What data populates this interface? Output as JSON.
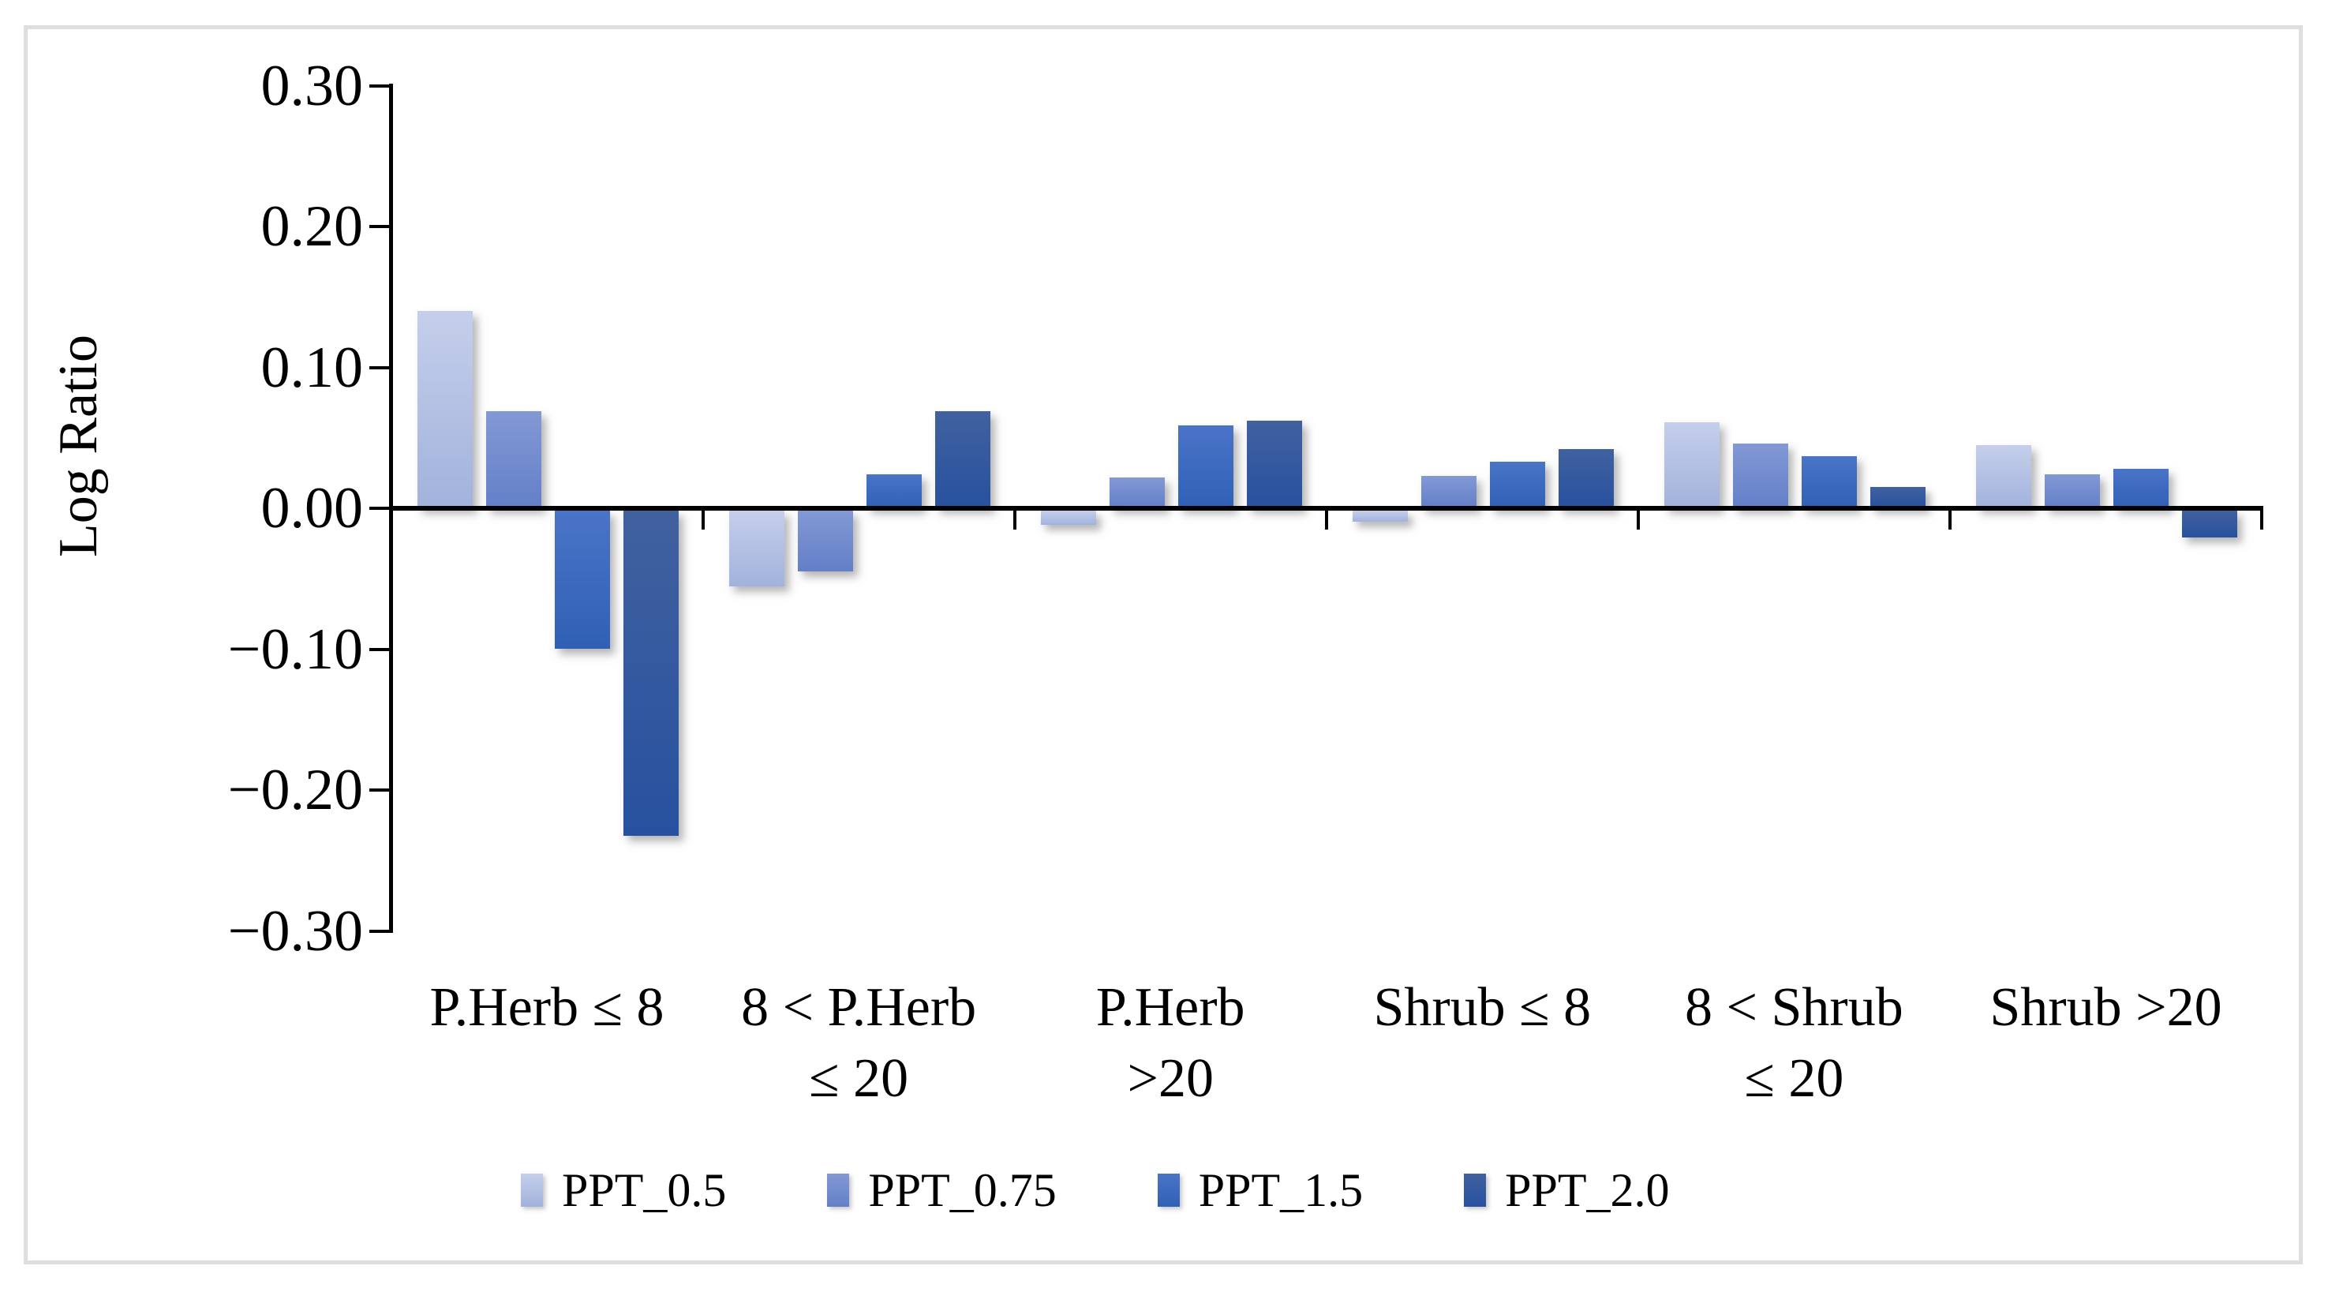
{
  "figure": {
    "border_color": "#dedede",
    "background": "#ffffff"
  },
  "chart_data": {
    "type": "bar",
    "title": "",
    "xlabel": "",
    "ylabel": "Log Ratio",
    "ylim": [
      -0.3,
      0.3
    ],
    "ytick_step": 0.1,
    "yticks": [
      {
        "value": 0.3,
        "label": "0.30"
      },
      {
        "value": 0.2,
        "label": "0.20"
      },
      {
        "value": 0.1,
        "label": "0.10"
      },
      {
        "value": 0.0,
        "label": "0.00"
      },
      {
        "value": -0.1,
        "label": "−0.10"
      },
      {
        "value": -0.2,
        "label": "−0.20"
      },
      {
        "value": -0.3,
        "label": "−0.30"
      }
    ],
    "grid": false,
    "legend_position": "bottom",
    "categories": [
      "P.Herb ≤ 8",
      "8 < P.Herb ≤ 20",
      "P.Herb >20",
      "Shrub ≤ 8",
      "8 < Shrub ≤ 20",
      "Shrub >20"
    ],
    "category_label_lines": [
      [
        "P.Herb ≤ 8"
      ],
      [
        "8 < P.Herb",
        "≤ 20"
      ],
      [
        "P.Herb",
        ">20"
      ],
      [
        "Shrub ≤ 8"
      ],
      [
        "8 < Shrub",
        "≤ 20"
      ],
      [
        "Shrub >20"
      ]
    ],
    "series": [
      {
        "name": "PPT_0.5",
        "color": "#aebce3",
        "color_top": "#c5cfeb",
        "color_bottom": "#a2b2dc",
        "values": [
          0.14,
          -0.054,
          -0.01,
          -0.008,
          0.061,
          0.045
        ]
      },
      {
        "name": "PPT_0.75",
        "color": "#7289cc",
        "color_top": "#8399d5",
        "color_bottom": "#637fc7",
        "values": [
          0.069,
          -0.043,
          0.022,
          0.023,
          0.046,
          0.024
        ]
      },
      {
        "name": "PPT_1.5",
        "color": "#3c68c4",
        "color_top": "#4a74c8",
        "color_bottom": "#3060b5",
        "values": [
          -0.098,
          0.024,
          0.059,
          0.033,
          0.037,
          0.028
        ]
      },
      {
        "name": "PPT_2.0",
        "color": "#2d55a3",
        "color_top": "#41619f",
        "color_bottom": "#27519f",
        "values": [
          -0.231,
          0.069,
          0.062,
          0.042,
          0.015,
          -0.019
        ]
      }
    ]
  }
}
